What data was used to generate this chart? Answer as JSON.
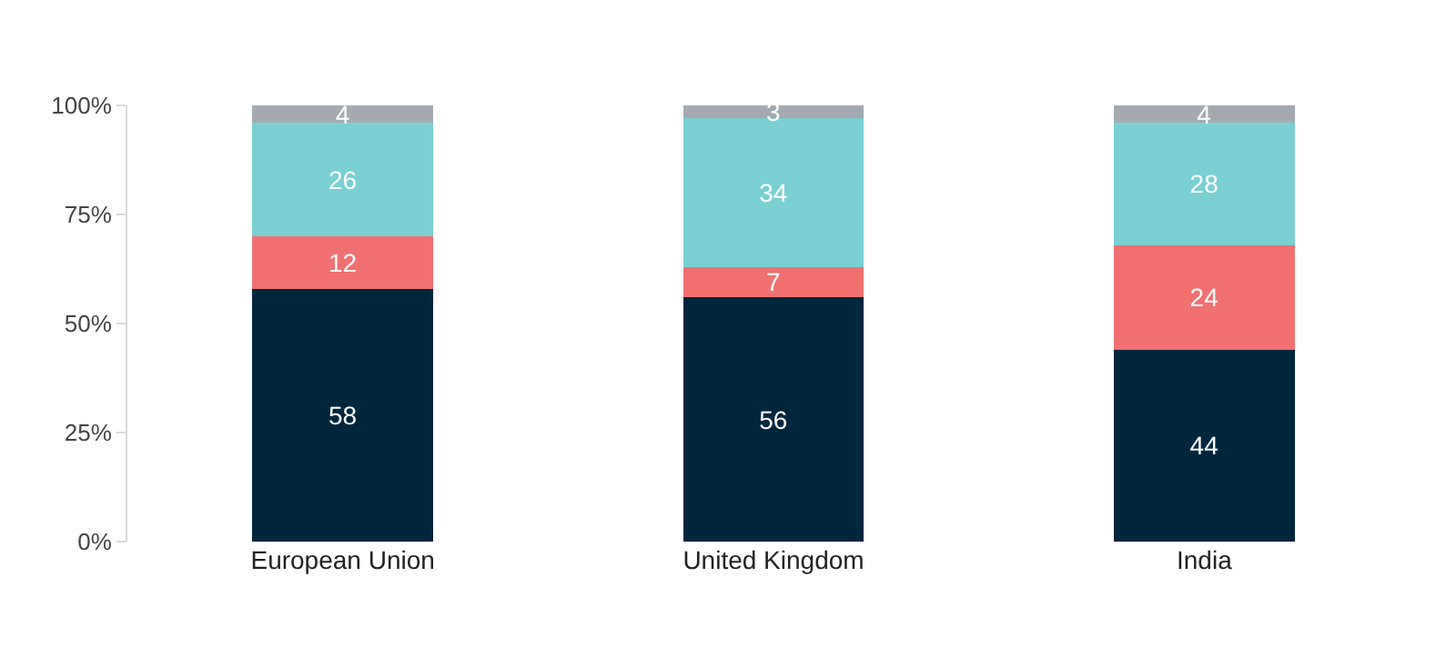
{
  "chart_data": {
    "type": "bar",
    "stacked": true,
    "data_labels": true,
    "grid": false,
    "categories": [
      "European Union",
      "United Kingdom",
      "India"
    ],
    "series": [
      {
        "color": "#00263e",
        "values": [
          58,
          56,
          44
        ]
      },
      {
        "color": "#f07070",
        "values": [
          12,
          7,
          24
        ]
      },
      {
        "color": "#7acfd3",
        "values": [
          26,
          34,
          28
        ]
      },
      {
        "color": "#a4aab0",
        "values": [
          4,
          3,
          4
        ]
      }
    ],
    "ylim": [
      0,
      100
    ],
    "yticks": [
      {
        "value": 0,
        "label": "0%"
      },
      {
        "value": 25,
        "label": "25%"
      },
      {
        "value": 50,
        "label": "50%"
      },
      {
        "value": 75,
        "label": "75%"
      },
      {
        "value": 100,
        "label": "100%"
      }
    ]
  }
}
